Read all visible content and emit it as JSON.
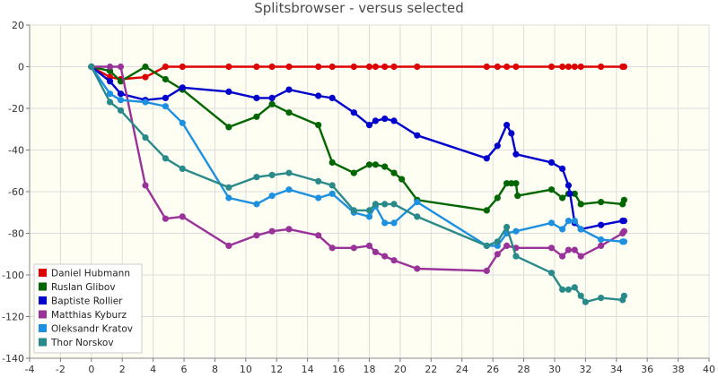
{
  "chart_data": {
    "type": "line",
    "title": "Splitsbrowser - versus selected",
    "xlabel": "",
    "ylabel": "",
    "xlim": [
      -4,
      40
    ],
    "ylim": [
      -140,
      20
    ],
    "xticks": [
      -4,
      -2,
      0,
      2,
      4,
      6,
      8,
      10,
      12,
      14,
      16,
      18,
      20,
      22,
      24,
      26,
      28,
      30,
      32,
      34,
      36,
      38,
      40
    ],
    "yticks": [
      20,
      0,
      -20,
      -40,
      -60,
      -80,
      -100,
      -120,
      -140
    ],
    "grid": true,
    "legend_position": "bottom-left",
    "series": [
      {
        "name": "Daniel Hubmann",
        "color": "#dd0000",
        "points": [
          [
            0,
            0
          ],
          [
            1.2,
            -5
          ],
          [
            1.9,
            -6
          ],
          [
            3.5,
            -5
          ],
          [
            4.8,
            0
          ],
          [
            5.9,
            0
          ],
          [
            8.9,
            0
          ],
          [
            10.7,
            0
          ],
          [
            11.7,
            0
          ],
          [
            12.8,
            0
          ],
          [
            14.7,
            0
          ],
          [
            15.6,
            0
          ],
          [
            17.0,
            0
          ],
          [
            18.0,
            0
          ],
          [
            18.4,
            0
          ],
          [
            19.0,
            0
          ],
          [
            19.6,
            0
          ],
          [
            21.1,
            0
          ],
          [
            25.6,
            0
          ],
          [
            26.3,
            0
          ],
          [
            26.9,
            0
          ],
          [
            27.5,
            0
          ],
          [
            29.8,
            0
          ],
          [
            30.5,
            0
          ],
          [
            30.9,
            0
          ],
          [
            31.3,
            0
          ],
          [
            31.7,
            0
          ],
          [
            33.0,
            0
          ],
          [
            34.4,
            0
          ],
          [
            34.5,
            0
          ]
        ]
      },
      {
        "name": "Ruslan Glibov",
        "color": "#006600",
        "points": [
          [
            0,
            0
          ],
          [
            1.2,
            -2
          ],
          [
            1.9,
            -7
          ],
          [
            3.5,
            0
          ],
          [
            4.8,
            -6
          ],
          [
            5.9,
            -11
          ],
          [
            8.9,
            -29
          ],
          [
            10.7,
            -24
          ],
          [
            11.7,
            -18
          ],
          [
            12.8,
            -22
          ],
          [
            14.7,
            -28
          ],
          [
            15.6,
            -46
          ],
          [
            17.0,
            -51
          ],
          [
            18.0,
            -47
          ],
          [
            18.4,
            -47
          ],
          [
            19.0,
            -48
          ],
          [
            19.6,
            -51
          ],
          [
            20.1,
            -54
          ],
          [
            21.1,
            -64
          ],
          [
            25.6,
            -69
          ],
          [
            26.3,
            -63
          ],
          [
            26.9,
            -56
          ],
          [
            27.2,
            -56
          ],
          [
            27.5,
            -56
          ],
          [
            27.6,
            -62
          ],
          [
            29.8,
            -59
          ],
          [
            30.5,
            -63
          ],
          [
            30.9,
            -61
          ],
          [
            31.3,
            -61
          ],
          [
            31.7,
            -66
          ],
          [
            33.0,
            -65
          ],
          [
            34.4,
            -66
          ],
          [
            34.5,
            -64
          ]
        ]
      },
      {
        "name": "Baptiste Rollier",
        "color": "#0000cc",
        "points": [
          [
            0,
            0
          ],
          [
            1.2,
            -7
          ],
          [
            1.9,
            -13
          ],
          [
            3.5,
            -16
          ],
          [
            4.8,
            -15
          ],
          [
            5.9,
            -10
          ],
          [
            8.9,
            -12
          ],
          [
            10.7,
            -15
          ],
          [
            11.7,
            -15
          ],
          [
            12.8,
            -11
          ],
          [
            14.7,
            -14
          ],
          [
            15.6,
            -15
          ],
          [
            17.0,
            -22
          ],
          [
            18.0,
            -28
          ],
          [
            18.4,
            -26
          ],
          [
            19.0,
            -25
          ],
          [
            19.6,
            -26
          ],
          [
            21.1,
            -33
          ],
          [
            25.6,
            -44
          ],
          [
            26.3,
            -38
          ],
          [
            26.9,
            -28
          ],
          [
            27.2,
            -32
          ],
          [
            27.5,
            -42
          ],
          [
            29.8,
            -46
          ],
          [
            30.5,
            -49
          ],
          [
            30.9,
            -57
          ],
          [
            31.0,
            -61
          ],
          [
            31.3,
            -75
          ],
          [
            31.7,
            -78
          ],
          [
            33.0,
            -76
          ],
          [
            34.4,
            -74
          ],
          [
            34.5,
            -74
          ]
        ]
      },
      {
        "name": "Matthias Kyburz",
        "color": "#993399",
        "points": [
          [
            0,
            0
          ],
          [
            1.2,
            0
          ],
          [
            1.9,
            0
          ],
          [
            3.5,
            -57
          ],
          [
            4.8,
            -73
          ],
          [
            5.9,
            -72
          ],
          [
            8.9,
            -86
          ],
          [
            10.7,
            -81
          ],
          [
            11.7,
            -79
          ],
          [
            12.8,
            -78
          ],
          [
            14.7,
            -81
          ],
          [
            15.6,
            -87
          ],
          [
            17.0,
            -87
          ],
          [
            18.0,
            -86
          ],
          [
            18.4,
            -89
          ],
          [
            19.0,
            -91
          ],
          [
            19.6,
            -93
          ],
          [
            21.1,
            -97
          ],
          [
            25.6,
            -98
          ],
          [
            26.3,
            -90
          ],
          [
            26.9,
            -86
          ],
          [
            27.5,
            -87
          ],
          [
            29.8,
            -87
          ],
          [
            30.5,
            -91
          ],
          [
            30.9,
            -88
          ],
          [
            31.3,
            -88
          ],
          [
            31.7,
            -91
          ],
          [
            33.0,
            -86
          ],
          [
            34.4,
            -80
          ],
          [
            34.5,
            -79
          ]
        ]
      },
      {
        "name": "Oleksandr Kratov",
        "color": "#1e90e0",
        "points": [
          [
            0,
            0
          ],
          [
            1.2,
            -13
          ],
          [
            1.9,
            -16
          ],
          [
            3.5,
            -17
          ],
          [
            4.8,
            -19
          ],
          [
            5.9,
            -27
          ],
          [
            8.9,
            -63
          ],
          [
            10.7,
            -66
          ],
          [
            11.7,
            -62
          ],
          [
            12.8,
            -59
          ],
          [
            14.7,
            -63
          ],
          [
            15.6,
            -61
          ],
          [
            17.0,
            -70
          ],
          [
            18.0,
            -72
          ],
          [
            18.4,
            -67
          ],
          [
            19.0,
            -75
          ],
          [
            19.6,
            -75
          ],
          [
            21.1,
            -65
          ],
          [
            25.6,
            -86
          ],
          [
            26.3,
            -86
          ],
          [
            26.9,
            -80
          ],
          [
            27.5,
            -79
          ],
          [
            29.8,
            -75
          ],
          [
            30.5,
            -78
          ],
          [
            30.9,
            -74
          ],
          [
            31.3,
            -74
          ],
          [
            31.7,
            -78
          ],
          [
            33.0,
            -83
          ],
          [
            34.4,
            -84
          ],
          [
            34.5,
            -84
          ]
        ]
      },
      {
        "name": "Thor Norskov",
        "color": "#2a8a8a",
        "points": [
          [
            0,
            0
          ],
          [
            1.2,
            -17
          ],
          [
            1.9,
            -21
          ],
          [
            3.5,
            -34
          ],
          [
            4.8,
            -44
          ],
          [
            5.9,
            -49
          ],
          [
            8.9,
            -58
          ],
          [
            10.7,
            -53
          ],
          [
            11.7,
            -52
          ],
          [
            12.8,
            -51
          ],
          [
            14.7,
            -55
          ],
          [
            15.6,
            -57
          ],
          [
            17.0,
            -69
          ],
          [
            18.0,
            -69
          ],
          [
            18.4,
            -66
          ],
          [
            19.0,
            -66
          ],
          [
            19.6,
            -66
          ],
          [
            21.1,
            -72
          ],
          [
            25.6,
            -86
          ],
          [
            26.3,
            -84
          ],
          [
            26.9,
            -77
          ],
          [
            27.5,
            -91
          ],
          [
            29.8,
            -99
          ],
          [
            30.5,
            -107
          ],
          [
            30.9,
            -107
          ],
          [
            31.3,
            -106
          ],
          [
            31.7,
            -110
          ],
          [
            32.0,
            -113
          ],
          [
            33.0,
            -111
          ],
          [
            34.4,
            -112
          ],
          [
            34.5,
            -110
          ]
        ]
      }
    ]
  }
}
